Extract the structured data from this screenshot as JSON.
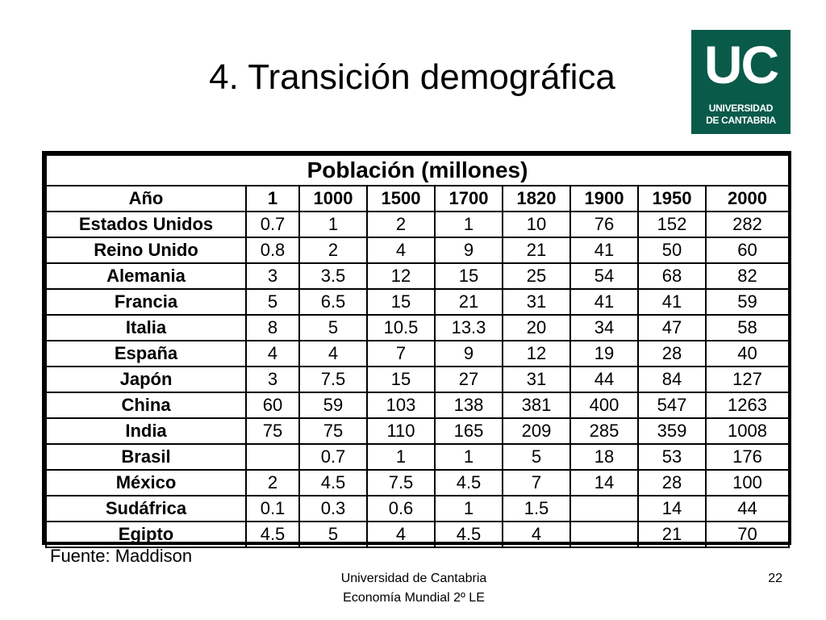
{
  "slide": {
    "title": "4. Transición demográfica",
    "logo": {
      "main": "UC",
      "line1": "UNIVERSIDAD",
      "line2": "DE CANTABRIA"
    },
    "source": "Fuente: Maddison",
    "footer": {
      "line1": "Universidad de Cantabria",
      "line2": "Economía Mundial 2º LE"
    },
    "page_number": "22"
  },
  "table": {
    "caption": "Población (millones)",
    "header": [
      "Año",
      "1",
      "1000",
      "1500",
      "1700",
      "1820",
      "1900",
      "1950",
      "2000"
    ],
    "rows": [
      [
        "Estados Unidos",
        "0.7",
        "1",
        "2",
        "1",
        "10",
        "76",
        "152",
        "282"
      ],
      [
        "Reino Unido",
        "0.8",
        "2",
        "4",
        "9",
        "21",
        "41",
        "50",
        "60"
      ],
      [
        "Alemania",
        "3",
        "3.5",
        "12",
        "15",
        "25",
        "54",
        "68",
        "82"
      ],
      [
        "Francia",
        "5",
        "6.5",
        "15",
        "21",
        "31",
        "41",
        "41",
        "59"
      ],
      [
        "Italia",
        "8",
        "5",
        "10.5",
        "13.3",
        "20",
        "34",
        "47",
        "58"
      ],
      [
        "España",
        "4",
        "4",
        "7",
        "9",
        "12",
        "19",
        "28",
        "40"
      ],
      [
        "Japón",
        "3",
        "7.5",
        "15",
        "27",
        "31",
        "44",
        "84",
        "127"
      ],
      [
        "China",
        "60",
        "59",
        "103",
        "138",
        "381",
        "400",
        "547",
        "1263"
      ],
      [
        "India",
        "75",
        "75",
        "110",
        "165",
        "209",
        "285",
        "359",
        "1008"
      ],
      [
        "Brasil",
        "",
        "0.7",
        "1",
        "1",
        "5",
        "18",
        "53",
        "176"
      ],
      [
        "México",
        "2",
        "4.5",
        "7.5",
        "4.5",
        "7",
        "14",
        "28",
        "100"
      ],
      [
        "Sudáfrica",
        "0.1",
        "0.3",
        "0.6",
        "1",
        "1.5",
        "",
        "14",
        "44"
      ],
      [
        "Egipto",
        "4.5",
        "5",
        "4",
        "4.5",
        "4",
        "",
        "21",
        "70"
      ]
    ]
  }
}
